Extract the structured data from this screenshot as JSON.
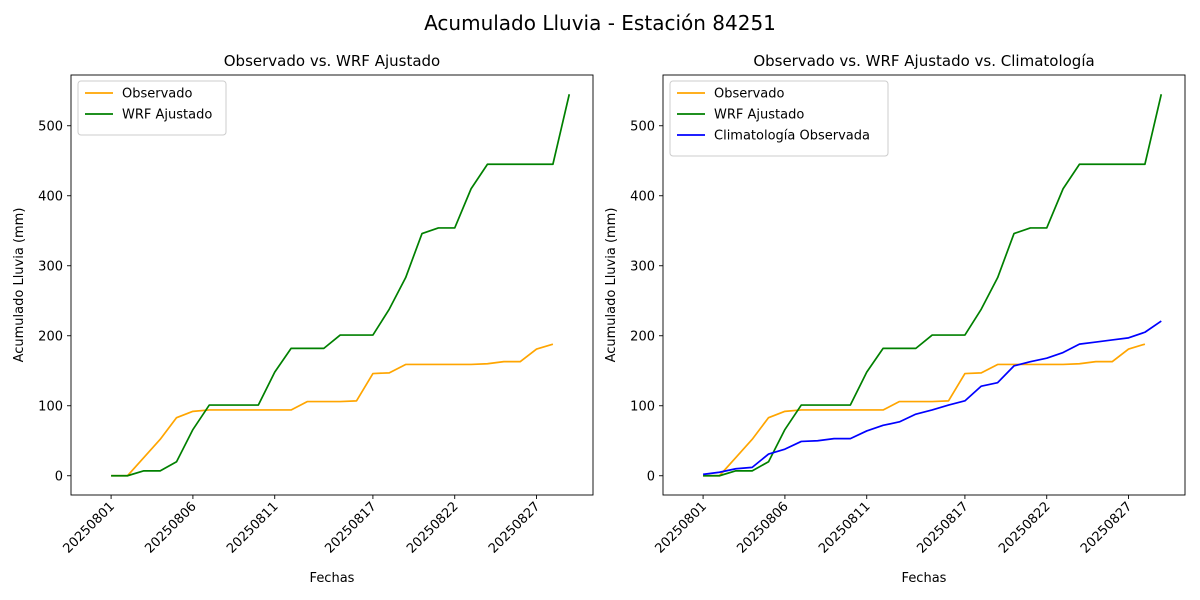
{
  "figure": {
    "title": "Acumulado Lluvia - Estación 84251"
  },
  "colors": {
    "observado": "#ffa500",
    "wrf": "#008000",
    "climatologia": "#0000ff"
  },
  "chart_data": [
    {
      "type": "line",
      "title": "Observado vs. WRF Ajustado",
      "xlabel": "Fechas",
      "ylabel": "Acumulado Lluvia (mm)",
      "x_tick_labels": [
        "20250801",
        "20250806",
        "20250811",
        "20250817",
        "20250822",
        "20250827"
      ],
      "y_ticks": [
        0,
        100,
        200,
        300,
        400,
        500
      ],
      "legend_position": "top-left",
      "series": [
        {
          "name": "Observado",
          "values": [
            0,
            0,
            26,
            52,
            83,
            92,
            94,
            94,
            94,
            94,
            94,
            94,
            106,
            106,
            106,
            107,
            146,
            147,
            159,
            159,
            159,
            159,
            159,
            160,
            163,
            163,
            181,
            188
          ]
        },
        {
          "name": "WRF Ajustado",
          "values": [
            0,
            0,
            7,
            7,
            20,
            66,
            101,
            101,
            101,
            101,
            148,
            182,
            182,
            182,
            201,
            201,
            201,
            238,
            283,
            346,
            354,
            354,
            410,
            445,
            445,
            445,
            445,
            445,
            545
          ]
        }
      ]
    },
    {
      "type": "line",
      "title": "Observado vs. WRF Ajustado vs. Climatología",
      "xlabel": "Fechas",
      "ylabel": "Acumulado Lluvia (mm)",
      "x_tick_labels": [
        "20250801",
        "20250806",
        "20250811",
        "20250817",
        "20250822",
        "20250827"
      ],
      "y_ticks": [
        0,
        100,
        200,
        300,
        400,
        500
      ],
      "legend_position": "top-left",
      "series": [
        {
          "name": "Observado",
          "values": [
            0,
            0,
            26,
            52,
            83,
            92,
            94,
            94,
            94,
            94,
            94,
            94,
            106,
            106,
            106,
            107,
            146,
            147,
            159,
            159,
            159,
            159,
            159,
            160,
            163,
            163,
            181,
            188
          ]
        },
        {
          "name": "WRF Ajustado",
          "values": [
            0,
            0,
            7,
            7,
            20,
            66,
            101,
            101,
            101,
            101,
            148,
            182,
            182,
            182,
            201,
            201,
            201,
            238,
            283,
            346,
            354,
            354,
            410,
            445,
            445,
            445,
            445,
            445,
            545
          ]
        },
        {
          "name": "Climatología Observada",
          "values": [
            2,
            5,
            10,
            12,
            31,
            38,
            49,
            50,
            53,
            53,
            64,
            72,
            77,
            88,
            94,
            101,
            107,
            128,
            133,
            157,
            163,
            168,
            176,
            188,
            191,
            194,
            197,
            205,
            221
          ]
        }
      ]
    }
  ]
}
